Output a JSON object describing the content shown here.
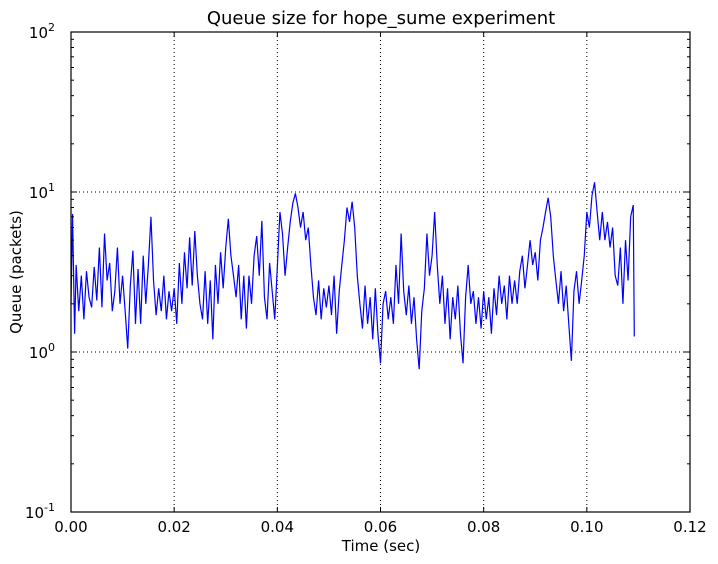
{
  "chart_data": {
    "type": "line",
    "title": "Queue size for hope_sume experiment",
    "xlabel": "Time (sec)",
    "ylabel": "Queue (packets)",
    "xlim": [
      0.0,
      0.12
    ],
    "ylim": [
      0.1,
      100
    ],
    "yscale": "log",
    "grid": true,
    "x_ticks": [
      "0.00",
      "0.02",
      "0.04",
      "0.06",
      "0.08",
      "0.10",
      "0.12"
    ],
    "y_ticks": [
      {
        "base": "10",
        "exp": "-1"
      },
      {
        "base": "10",
        "exp": "0"
      },
      {
        "base": "10",
        "exp": "1"
      },
      {
        "base": "10",
        "exp": "2"
      }
    ],
    "series": [
      {
        "color": "#0000ff",
        "points": [
          [
            0.0,
            2.0
          ],
          [
            0.0003,
            7.3
          ],
          [
            0.0007,
            1.3
          ],
          [
            0.001,
            3.5
          ],
          [
            0.0015,
            1.8
          ],
          [
            0.002,
            3.0
          ],
          [
            0.0025,
            1.6
          ],
          [
            0.003,
            3.2
          ],
          [
            0.0035,
            2.2
          ],
          [
            0.004,
            1.9
          ],
          [
            0.0045,
            3.4
          ],
          [
            0.005,
            2.1
          ],
          [
            0.0055,
            4.5
          ],
          [
            0.006,
            1.9
          ],
          [
            0.0065,
            5.5
          ],
          [
            0.007,
            2.8
          ],
          [
            0.0075,
            3.6
          ],
          [
            0.008,
            1.8
          ],
          [
            0.0085,
            2.4
          ],
          [
            0.009,
            4.5
          ],
          [
            0.0095,
            2.0
          ],
          [
            0.01,
            3.0
          ],
          [
            0.0105,
            1.8
          ],
          [
            0.011,
            1.05
          ],
          [
            0.0115,
            2.6
          ],
          [
            0.012,
            4.3
          ],
          [
            0.0125,
            1.5
          ],
          [
            0.013,
            3.3
          ],
          [
            0.0135,
            1.5
          ],
          [
            0.014,
            4.0
          ],
          [
            0.0145,
            2.0
          ],
          [
            0.015,
            3.5
          ],
          [
            0.0155,
            7.0
          ],
          [
            0.016,
            2.8
          ],
          [
            0.0165,
            1.7
          ],
          [
            0.017,
            2.5
          ],
          [
            0.0175,
            1.8
          ],
          [
            0.018,
            3.0
          ],
          [
            0.0185,
            1.6
          ],
          [
            0.019,
            2.4
          ],
          [
            0.0195,
            1.8
          ],
          [
            0.02,
            2.5
          ],
          [
            0.0205,
            1.5
          ],
          [
            0.021,
            3.6
          ],
          [
            0.0215,
            2.0
          ],
          [
            0.022,
            4.2
          ],
          [
            0.0225,
            2.5
          ],
          [
            0.023,
            5.2
          ],
          [
            0.0235,
            2.6
          ],
          [
            0.024,
            5.7
          ],
          [
            0.0245,
            3.0
          ],
          [
            0.025,
            2.0
          ],
          [
            0.0255,
            1.6
          ],
          [
            0.026,
            3.2
          ],
          [
            0.0265,
            1.5
          ],
          [
            0.027,
            2.8
          ],
          [
            0.0275,
            1.2
          ],
          [
            0.028,
            3.5
          ],
          [
            0.0285,
            2.0
          ],
          [
            0.029,
            4.2
          ],
          [
            0.0295,
            2.5
          ],
          [
            0.03,
            4.5
          ],
          [
            0.0305,
            6.8
          ],
          [
            0.031,
            4.0
          ],
          [
            0.0315,
            3.0
          ],
          [
            0.032,
            2.2
          ],
          [
            0.0325,
            3.5
          ],
          [
            0.033,
            1.6
          ],
          [
            0.0335,
            3.0
          ],
          [
            0.034,
            1.4
          ],
          [
            0.0345,
            3.0
          ],
          [
            0.035,
            2.0
          ],
          [
            0.0355,
            4.0
          ],
          [
            0.036,
            5.3
          ],
          [
            0.0365,
            3.0
          ],
          [
            0.037,
            6.6
          ],
          [
            0.0375,
            2.2
          ],
          [
            0.038,
            1.6
          ],
          [
            0.0385,
            3.6
          ],
          [
            0.039,
            2.4
          ],
          [
            0.0395,
            1.6
          ],
          [
            0.04,
            3.4
          ],
          [
            0.0405,
            7.5
          ],
          [
            0.041,
            5.5
          ],
          [
            0.0415,
            3.0
          ],
          [
            0.042,
            4.5
          ],
          [
            0.0425,
            6.5
          ],
          [
            0.043,
            8.5
          ],
          [
            0.0435,
            9.8
          ],
          [
            0.044,
            8.0
          ],
          [
            0.0445,
            6.0
          ],
          [
            0.045,
            7.5
          ],
          [
            0.0455,
            5.0
          ],
          [
            0.046,
            6.0
          ],
          [
            0.0465,
            3.5
          ],
          [
            0.047,
            2.2
          ],
          [
            0.0475,
            1.7
          ],
          [
            0.048,
            2.8
          ],
          [
            0.0485,
            1.6
          ],
          [
            0.049,
            2.5
          ],
          [
            0.0495,
            1.9
          ],
          [
            0.05,
            2.6
          ],
          [
            0.0505,
            1.7
          ],
          [
            0.051,
            3.0
          ],
          [
            0.0515,
            1.3
          ],
          [
            0.052,
            2.4
          ],
          [
            0.0525,
            3.5
          ],
          [
            0.053,
            5.0
          ],
          [
            0.0535,
            8.0
          ],
          [
            0.054,
            6.5
          ],
          [
            0.0545,
            8.7
          ],
          [
            0.055,
            6.0
          ],
          [
            0.0555,
            3.0
          ],
          [
            0.056,
            2.0
          ],
          [
            0.0565,
            1.4
          ],
          [
            0.057,
            2.6
          ],
          [
            0.0575,
            1.5
          ],
          [
            0.058,
            2.2
          ],
          [
            0.0585,
            1.2
          ],
          [
            0.059,
            2.5
          ],
          [
            0.0595,
            1.3
          ],
          [
            0.06,
            0.85
          ],
          [
            0.0605,
            2.0
          ],
          [
            0.061,
            2.4
          ],
          [
            0.0615,
            1.6
          ],
          [
            0.062,
            2.2
          ],
          [
            0.0625,
            1.5
          ],
          [
            0.063,
            3.5
          ],
          [
            0.0635,
            2.0
          ],
          [
            0.064,
            5.5
          ],
          [
            0.0645,
            2.4
          ],
          [
            0.065,
            1.7
          ],
          [
            0.0655,
            2.6
          ],
          [
            0.066,
            1.5
          ],
          [
            0.0665,
            2.2
          ],
          [
            0.067,
            1.2
          ],
          [
            0.0675,
            0.78
          ],
          [
            0.068,
            1.8
          ],
          [
            0.0685,
            2.5
          ],
          [
            0.069,
            5.5
          ],
          [
            0.0695,
            3.0
          ],
          [
            0.07,
            4.0
          ],
          [
            0.0705,
            7.5
          ],
          [
            0.071,
            3.5
          ],
          [
            0.0715,
            2.0
          ],
          [
            0.072,
            3.0
          ],
          [
            0.0725,
            1.5
          ],
          [
            0.073,
            2.5
          ],
          [
            0.0735,
            1.2
          ],
          [
            0.074,
            2.2
          ],
          [
            0.0745,
            1.6
          ],
          [
            0.075,
            2.6
          ],
          [
            0.0755,
            1.3
          ],
          [
            0.076,
            0.85
          ],
          [
            0.0765,
            2.2
          ],
          [
            0.077,
            3.5
          ],
          [
            0.0775,
            2.0
          ],
          [
            0.078,
            2.4
          ],
          [
            0.0785,
            1.5
          ],
          [
            0.079,
            2.2
          ],
          [
            0.0795,
            1.4
          ],
          [
            0.08,
            2.4
          ],
          [
            0.0805,
            1.6
          ],
          [
            0.081,
            2.2
          ],
          [
            0.0815,
            1.3
          ],
          [
            0.082,
            2.5
          ],
          [
            0.0825,
            1.7
          ],
          [
            0.083,
            3.0
          ],
          [
            0.0835,
            2.0
          ],
          [
            0.084,
            2.6
          ],
          [
            0.0845,
            1.6
          ],
          [
            0.085,
            3.0
          ],
          [
            0.0855,
            2.0
          ],
          [
            0.086,
            2.8
          ],
          [
            0.0865,
            2.0
          ],
          [
            0.087,
            3.2
          ],
          [
            0.0875,
            4.0
          ],
          [
            0.088,
            2.5
          ],
          [
            0.0885,
            3.5
          ],
          [
            0.089,
            5.0
          ],
          [
            0.0895,
            3.5
          ],
          [
            0.09,
            4.2
          ],
          [
            0.0905,
            2.8
          ],
          [
            0.091,
            5.0
          ],
          [
            0.0915,
            6.0
          ],
          [
            0.092,
            7.5
          ],
          [
            0.0925,
            9.2
          ],
          [
            0.093,
            7.0
          ],
          [
            0.0935,
            4.0
          ],
          [
            0.094,
            2.8
          ],
          [
            0.0945,
            2.0
          ],
          [
            0.095,
            3.2
          ],
          [
            0.0955,
            1.8
          ],
          [
            0.096,
            2.6
          ],
          [
            0.0965,
            1.5
          ],
          [
            0.097,
            0.88
          ],
          [
            0.0975,
            2.4
          ],
          [
            0.098,
            3.2
          ],
          [
            0.0985,
            2.0
          ],
          [
            0.099,
            2.8
          ],
          [
            0.0995,
            4.0
          ],
          [
            0.1,
            7.5
          ],
          [
            0.1005,
            6.0
          ],
          [
            0.101,
            9.5
          ],
          [
            0.1015,
            11.5
          ],
          [
            0.102,
            7.5
          ],
          [
            0.1025,
            5.0
          ],
          [
            0.103,
            7.5
          ],
          [
            0.1035,
            5.0
          ],
          [
            0.104,
            6.5
          ],
          [
            0.1045,
            4.5
          ],
          [
            0.105,
            6.0
          ],
          [
            0.1055,
            3.0
          ],
          [
            0.106,
            2.6
          ],
          [
            0.1065,
            4.5
          ],
          [
            0.107,
            2.0
          ],
          [
            0.1075,
            5.0
          ],
          [
            0.108,
            2.8
          ],
          [
            0.1085,
            7.0
          ],
          [
            0.109,
            8.3
          ],
          [
            0.1092,
            1.25
          ]
        ]
      }
    ]
  }
}
